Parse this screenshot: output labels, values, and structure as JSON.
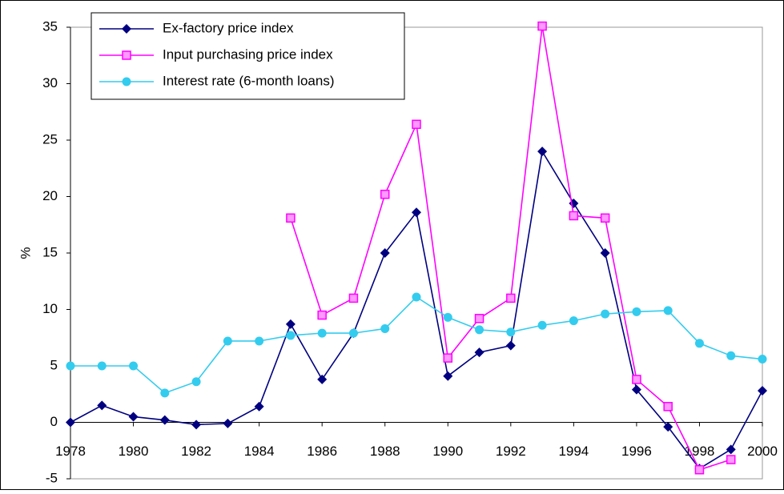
{
  "chart_data": {
    "type": "line",
    "ylabel": "%",
    "x": [
      1978,
      1979,
      1980,
      1981,
      1982,
      1983,
      1984,
      1985,
      1986,
      1987,
      1988,
      1989,
      1990,
      1991,
      1992,
      1993,
      1994,
      1995,
      1996,
      1997,
      1998,
      1999,
      2000
    ],
    "xlim": [
      1978,
      2000
    ],
    "xticks": [
      1978,
      1980,
      1982,
      1984,
      1986,
      1988,
      1990,
      1992,
      1994,
      1996,
      1998,
      2000
    ],
    "ylim": [
      -5,
      35
    ],
    "yticks": [
      -5,
      0,
      5,
      10,
      15,
      20,
      25,
      30,
      35
    ],
    "grid": false,
    "legend": "top-left",
    "series": [
      {
        "name": "Ex-factory price index",
        "color": "#000080",
        "marker": "diamond",
        "values": [
          0,
          1.5,
          0.5,
          0.2,
          -0.2,
          -0.1,
          1.4,
          8.7,
          3.8,
          7.9,
          15,
          18.6,
          4.1,
          6.2,
          6.8,
          24,
          19.4,
          15,
          2.9,
          -0.4,
          -4.1,
          -2.4,
          2.8
        ]
      },
      {
        "name": "Input purchasing price index",
        "color": "#ff00ff",
        "marker": "square",
        "values": [
          null,
          null,
          null,
          null,
          null,
          null,
          null,
          18.1,
          9.5,
          11,
          20.2,
          26.4,
          5.7,
          9.2,
          11,
          35.1,
          18.3,
          18.1,
          3.8,
          1.4,
          -4.2,
          -3.3,
          null
        ]
      },
      {
        "name": "Interest rate (6-month loans)",
        "color": "#33ccee",
        "marker": "circle",
        "values": [
          5.0,
          5.0,
          5.0,
          2.6,
          3.6,
          7.2,
          7.2,
          7.7,
          7.9,
          7.9,
          8.3,
          11.1,
          9.3,
          8.2,
          8.0,
          8.6,
          9.0,
          9.6,
          9.8,
          9.9,
          7.0,
          5.9,
          5.6
        ]
      }
    ]
  }
}
